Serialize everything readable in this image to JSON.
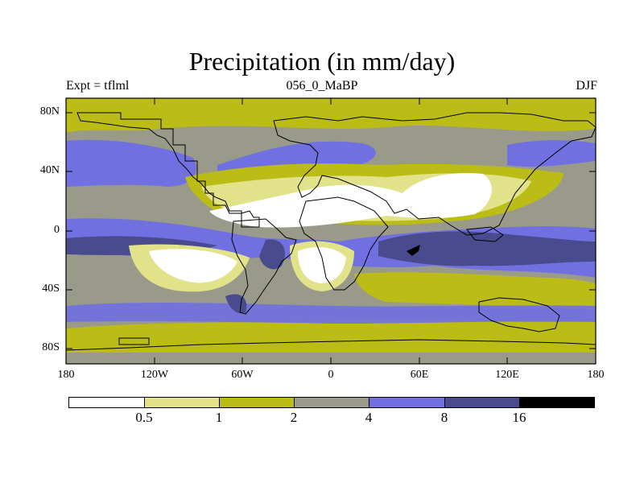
{
  "title": "Precipitation (in mm/day)",
  "left_label": "Expt = tflml",
  "center_label": "056_0_MaBP",
  "right_label": "DJF",
  "lat_ticks": [
    "80N",
    "40N",
    "0",
    "40S",
    "80S"
  ],
  "lon_ticks": [
    "180",
    "120W",
    "60W",
    "0",
    "60E",
    "120E",
    "180"
  ],
  "legend": {
    "colors": [
      "#ffffff",
      "#e2e28a",
      "#bcbc16",
      "#9a9a8a",
      "#7070e0",
      "#4a4a8e",
      "#000000"
    ],
    "labels": [
      "0.5",
      "1",
      "2",
      "4",
      "8",
      "16"
    ]
  },
  "colors": {
    "white": "#ffffff",
    "light_yellow": "#e2e28a",
    "olive": "#bcbc16",
    "gray": "#9a9a8a",
    "blue": "#7070e0",
    "dark_blue": "#4a4a8e",
    "black": "#000000"
  }
}
